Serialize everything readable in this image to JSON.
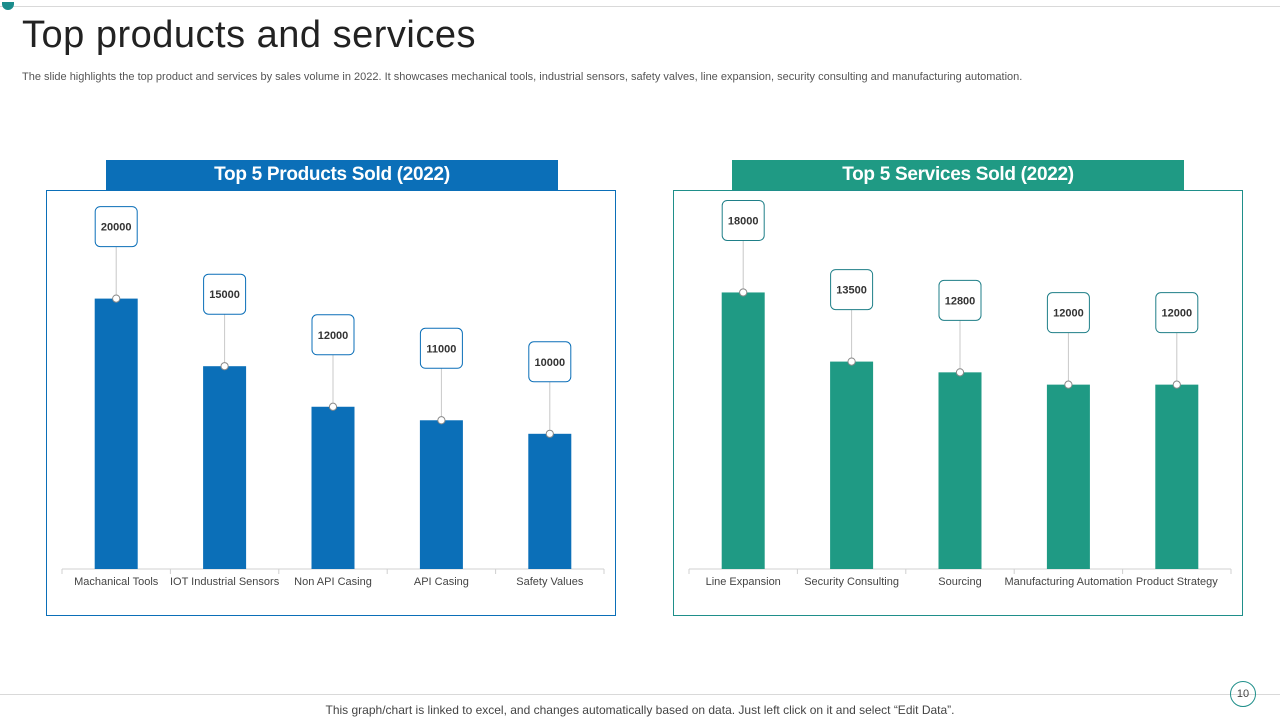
{
  "slide": {
    "title": "Top products and services",
    "subtitle": "The slide highlights the top product and services by sales volume in 2022. It showcases mechanical tools, industrial sensors, safety valves,  line expansion, security consulting and manufacturing automation.",
    "footer_note": "This graph/chart is linked to excel,  and changes automatically based on data. Just left click on it and select “Edit Data”.",
    "page_number": "10"
  },
  "colors": {
    "products": "#0b6fb8",
    "services": "#1f9a84",
    "label_border_products": "#0b6fb8",
    "label_border_services": "#1f7f88"
  },
  "chart_data": [
    {
      "type": "bar",
      "title": "Top 5 Products Sold (2022)",
      "categories": [
        "Machanical Tools",
        "IOT Industrial Sensors",
        "Non API Casing",
        "API Casing",
        "Safety Values"
      ],
      "values": [
        20000,
        15000,
        12000,
        11000,
        10000
      ],
      "data_labels": [
        "20000",
        "15000",
        "12000",
        "11000",
        "10000"
      ],
      "ylim": [
        0,
        25000
      ],
      "grid": false,
      "xlabel": "",
      "ylabel": ""
    },
    {
      "type": "bar",
      "title": "Top 5 Services Sold (2022)",
      "categories": [
        "Line Expansion",
        "Security Consulting",
        "Sourcing",
        "Manufacturing Automation",
        "Product Strategy"
      ],
      "values": [
        18000,
        13500,
        12800,
        12000,
        12000
      ],
      "data_labels": [
        "18000",
        "13500",
        "12800",
        "12000",
        "12000"
      ],
      "ylim": [
        0,
        22000
      ],
      "grid": false,
      "xlabel": "",
      "ylabel": ""
    }
  ]
}
